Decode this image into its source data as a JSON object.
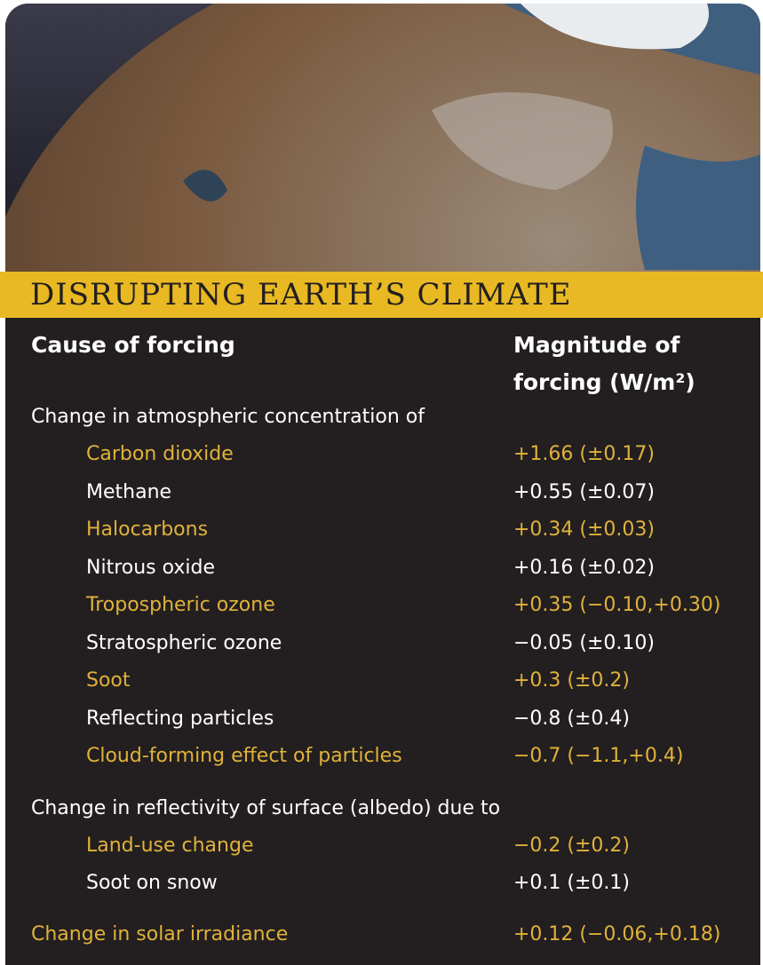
{
  "header": {
    "title": "DISRUPTING EARTH’S CLIMATE"
  },
  "table": {
    "columns": [
      "Cause of forcing",
      "Magnitude of",
      "forcing (W/m²)"
    ],
    "groups": [
      {
        "label": "Change in atmospheric concentration of",
        "rows": [
          [
            "Carbon dioxide",
            "+1.66 (±0.17)"
          ],
          [
            "Methane",
            "+0.55 (±0.07)"
          ],
          [
            "Halocarbons",
            "+0.34 (±0.03)"
          ],
          [
            "Nitrous oxide",
            "+0.16 (±0.02)"
          ],
          [
            "Tropospheric ozone",
            "+0.35 (−0.10,+0.30)"
          ],
          [
            "Stratospheric ozone",
            "−0.05 (±0.10)"
          ],
          [
            "Soot",
            "+0.3 (±0.2)"
          ],
          [
            "Reflecting particles",
            "−0.8 (±0.4)"
          ],
          [
            "Cloud-forming effect of particles",
            "−0.7 (−1.1,+0.4)"
          ]
        ]
      },
      {
        "label": "Change in reflectivity of surface (albedo) due to",
        "rows": [
          [
            "Land-use change",
            "−0.2 (±0.2)"
          ],
          [
            "Soot on snow",
            "+0.1 (±0.1)"
          ]
        ]
      }
    ],
    "footer_row": [
      "Change in solar irradiance",
      "+0.12 (−0.06,+0.18)"
    ]
  }
}
